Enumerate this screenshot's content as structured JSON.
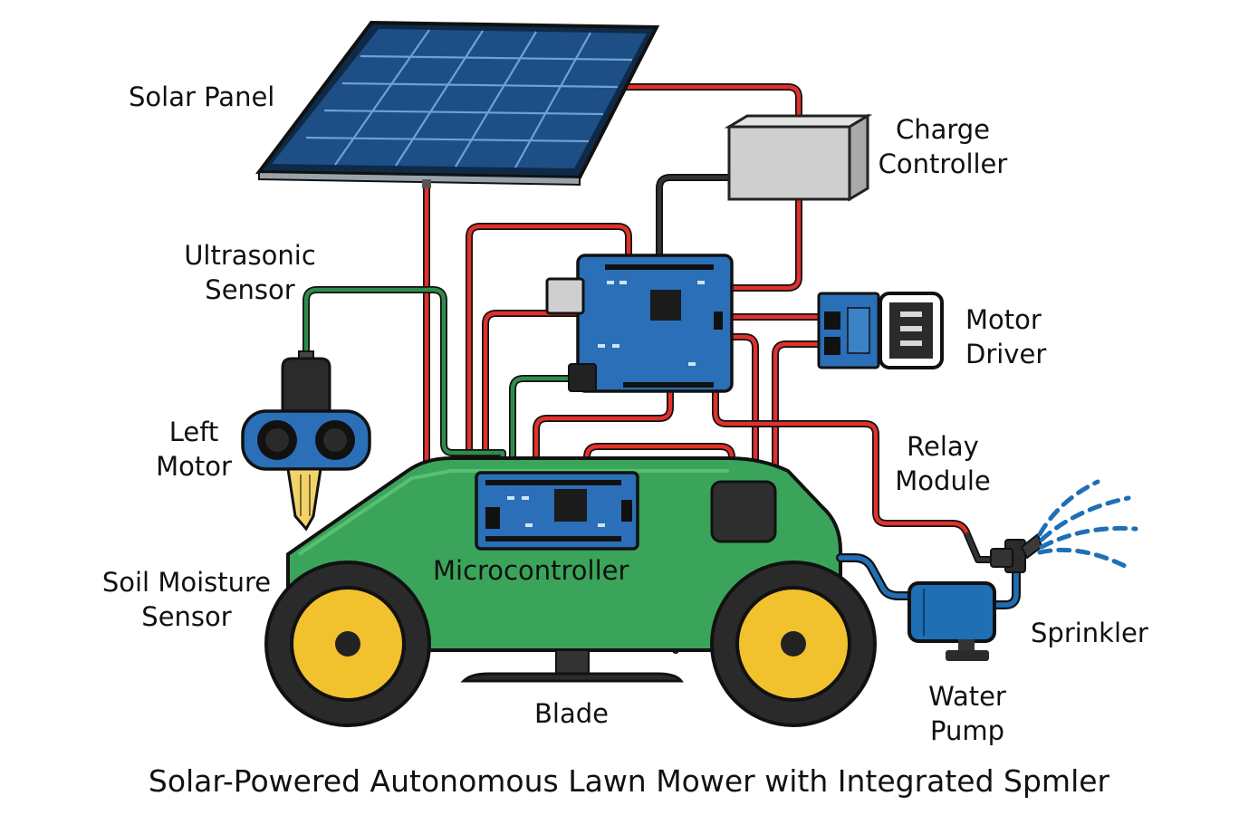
{
  "labels": {
    "solar_panel": "Solar Panel",
    "charge_controller": [
      "Charge",
      "Controller"
    ],
    "ultrasonic_sensor": [
      "Ultrasonic",
      "Sensor"
    ],
    "motor_driver": [
      "Motor",
      "Driver"
    ],
    "left_motor": [
      "Left",
      "Motor"
    ],
    "relay_module": [
      "Relay",
      "Module"
    ],
    "microcontroller": "Microcontroller",
    "soil_moisture_sensor": [
      "Soil Moisture",
      "Sensor"
    ],
    "sprinkler": "Sprinkler",
    "water_pump": [
      "Water",
      "Pump"
    ],
    "blade": "Blade"
  },
  "caption": "Solar-Powered Autonomous Lawn Mower with Integrated Spmler",
  "colors": {
    "wire_red": "#e0312b",
    "wire_green": "#2e8b4a",
    "wire_dark": "#333333",
    "pipe_blue": "#1f6fb5",
    "mower_body": "#3aa55a",
    "board_blue": "#2a6fb8",
    "wheel_yellow": "#f2c12e",
    "tire": "#2a2a2a",
    "panel_cell": "#1d4f86",
    "controller_gray": "#cfcfcf",
    "water_drops": "#1f6fb5"
  }
}
